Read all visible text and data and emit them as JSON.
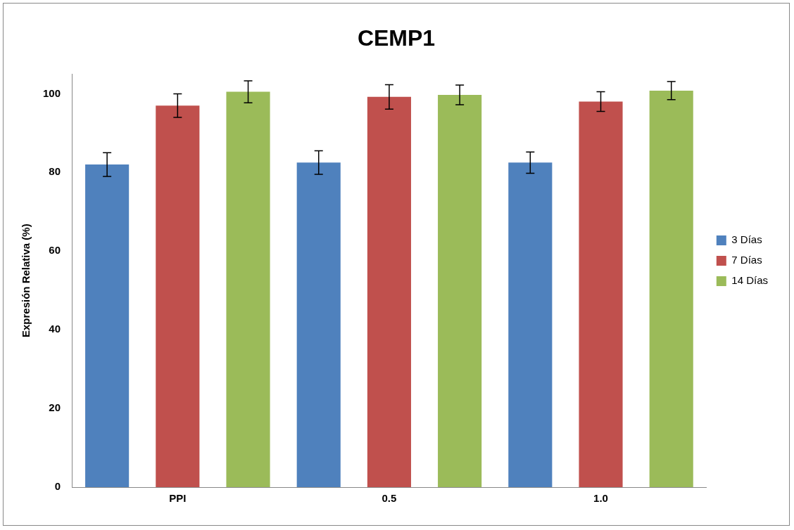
{
  "chart_data": {
    "type": "bar",
    "title": "CEMP1",
    "ylabel": "Expresión Relativa (%)",
    "categories": [
      "PPI",
      "0.5",
      "1.0"
    ],
    "series": [
      {
        "name": "3 Días",
        "color": "#4f81bd",
        "values": [
          82,
          82.5,
          82.5
        ],
        "errors": [
          3,
          3,
          2.7
        ]
      },
      {
        "name": "7 Días",
        "color": "#c0504d",
        "values": [
          97,
          99.2,
          98
        ],
        "errors": [
          3,
          3.1,
          2.5
        ]
      },
      {
        "name": "14 Días",
        "color": "#9bbb59",
        "values": [
          100.5,
          99.7,
          100.8
        ],
        "errors": [
          2.8,
          2.5,
          2.3
        ]
      }
    ],
    "ylim": [
      0,
      105
    ],
    "yticks": [
      0,
      20,
      40,
      60,
      80,
      100
    ],
    "grid": false,
    "legend": "right"
  }
}
